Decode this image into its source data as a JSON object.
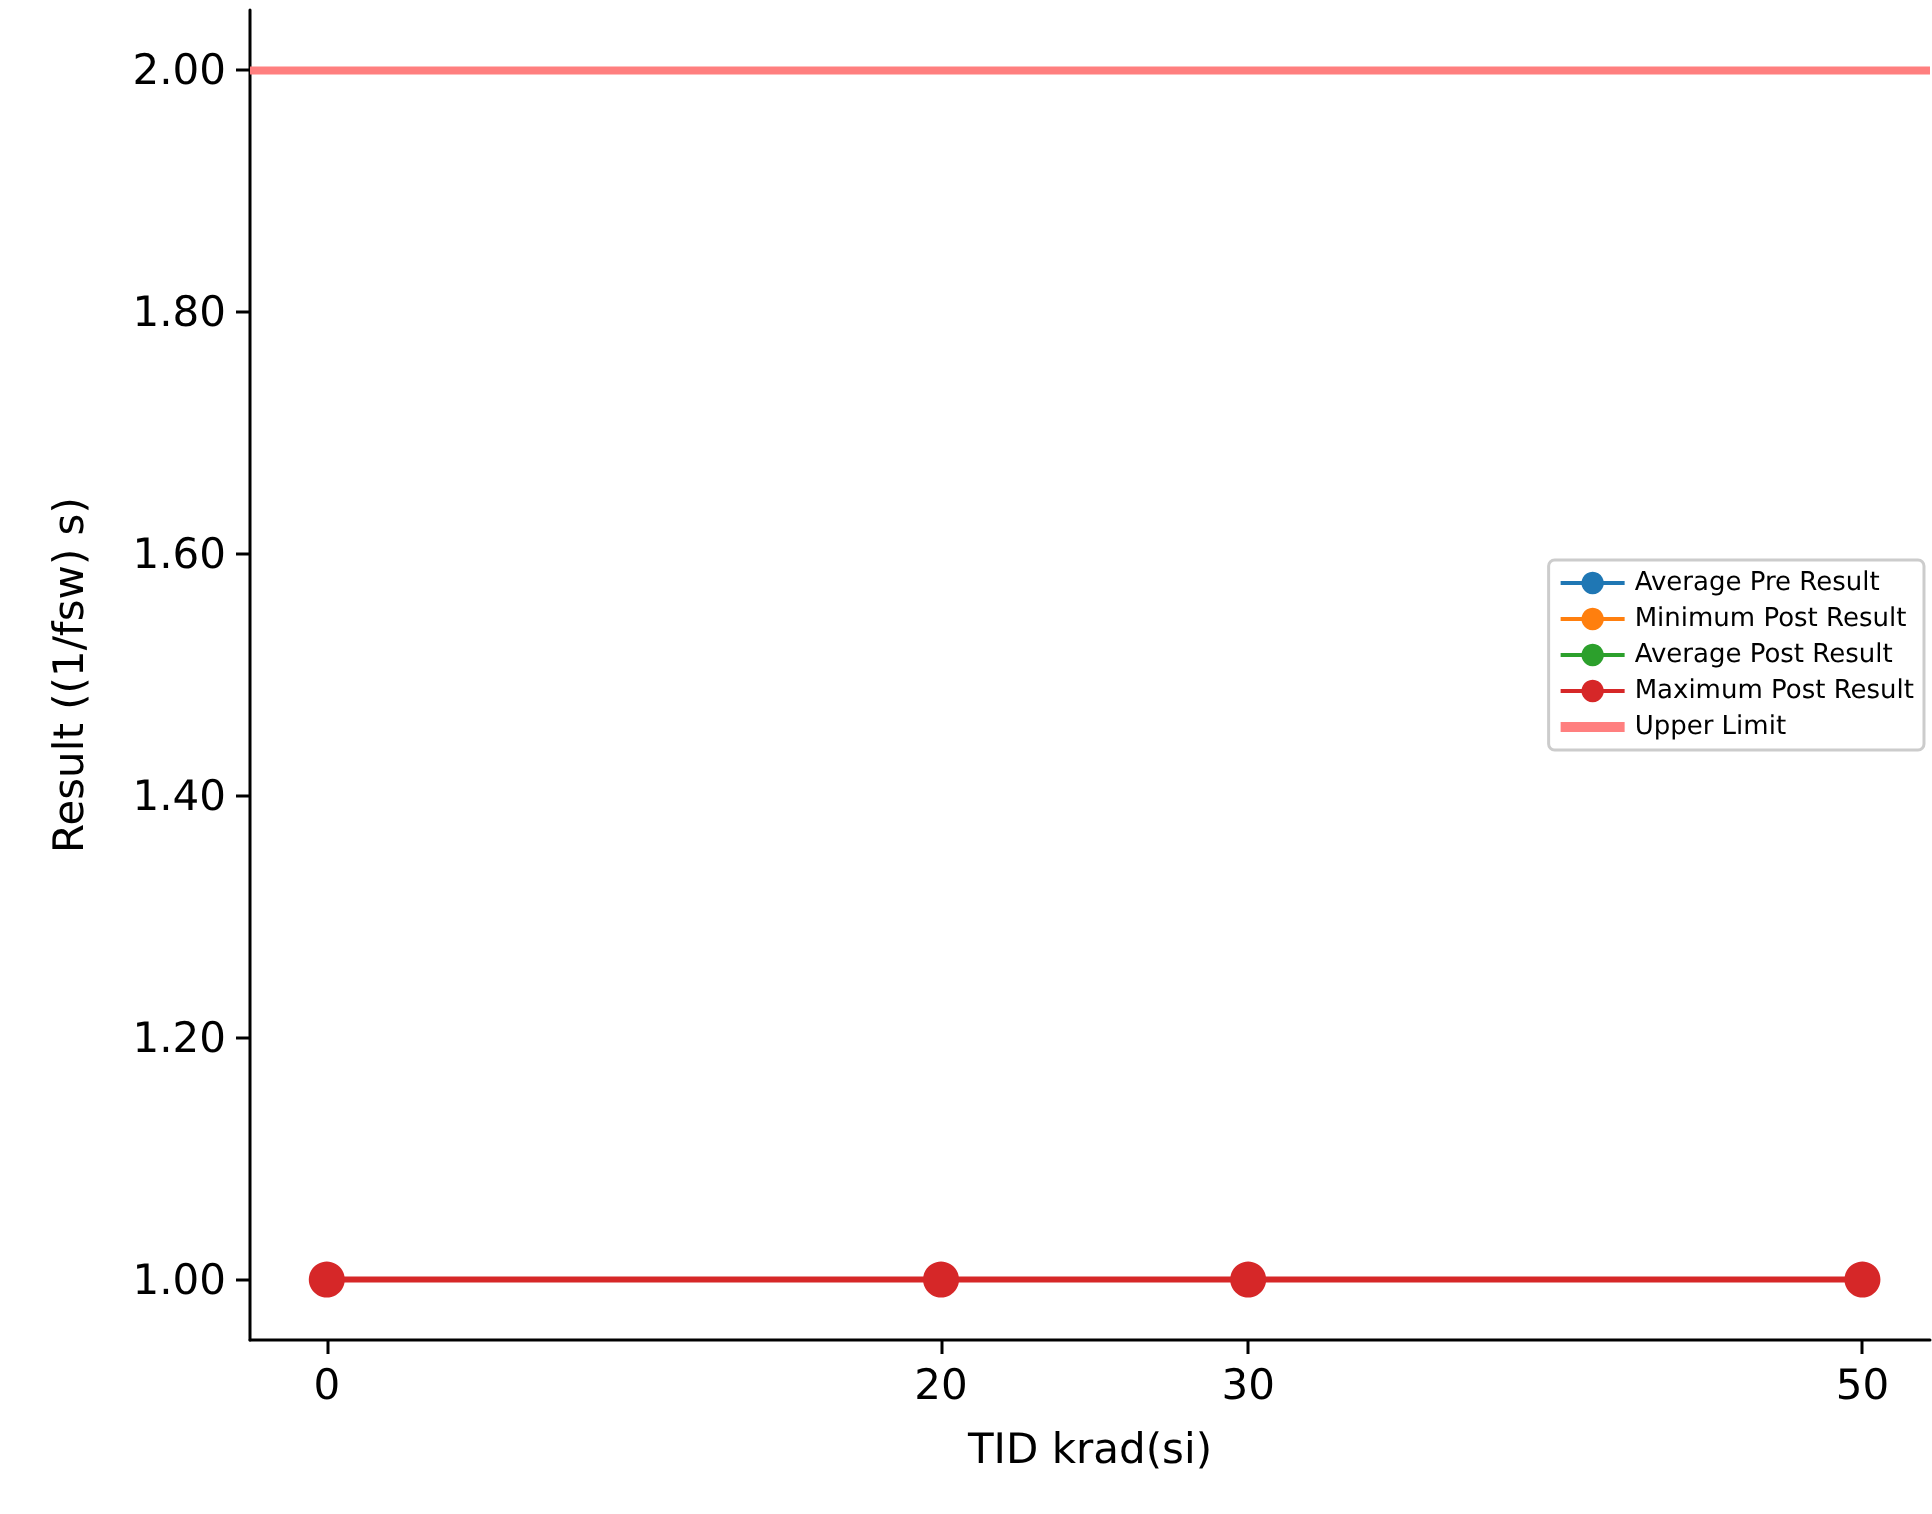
{
  "chart_data": {
    "type": "line",
    "xlabel": "TID krad(si)",
    "ylabel": "Result ((1/fsw) s)",
    "x": [
      0,
      20,
      30,
      50
    ],
    "series": [
      {
        "name": "Average Pre Result",
        "color": "#1f77b4",
        "values": [
          null,
          null,
          null,
          null
        ]
      },
      {
        "name": "Minimum Post Result",
        "color": "#ff7f0e",
        "values": [
          null,
          null,
          null,
          null
        ]
      },
      {
        "name": "Average Post Result",
        "color": "#2ca02c",
        "values": [
          null,
          null,
          null,
          null
        ]
      },
      {
        "name": "Maximum Post Result",
        "color": "#d62728",
        "values": [
          1,
          1,
          1,
          1
        ]
      },
      {
        "name": "Upper Limit",
        "color": "#ff7f7f",
        "x": [
          -2.5,
          52.2
        ],
        "values": [
          2,
          2
        ],
        "marker": "none"
      }
    ],
    "xlim": [
      -2.5,
      52.2
    ],
    "xticks": [
      0,
      20,
      30,
      50
    ],
    "ylim": [
      0.95,
      2.05
    ],
    "yticks": [
      {
        "value": 1,
        "label": "1.00"
      },
      {
        "value": 1.2,
        "label": "1.20"
      },
      {
        "value": 1.4,
        "label": "1.40"
      },
      {
        "value": 1.6,
        "label": "1.60"
      },
      {
        "value": 1.8,
        "label": "1.80"
      },
      {
        "value": 2,
        "label": "2.00"
      }
    ],
    "marker": "circle",
    "line_style": "solid",
    "grid": false,
    "legend": "right"
  }
}
